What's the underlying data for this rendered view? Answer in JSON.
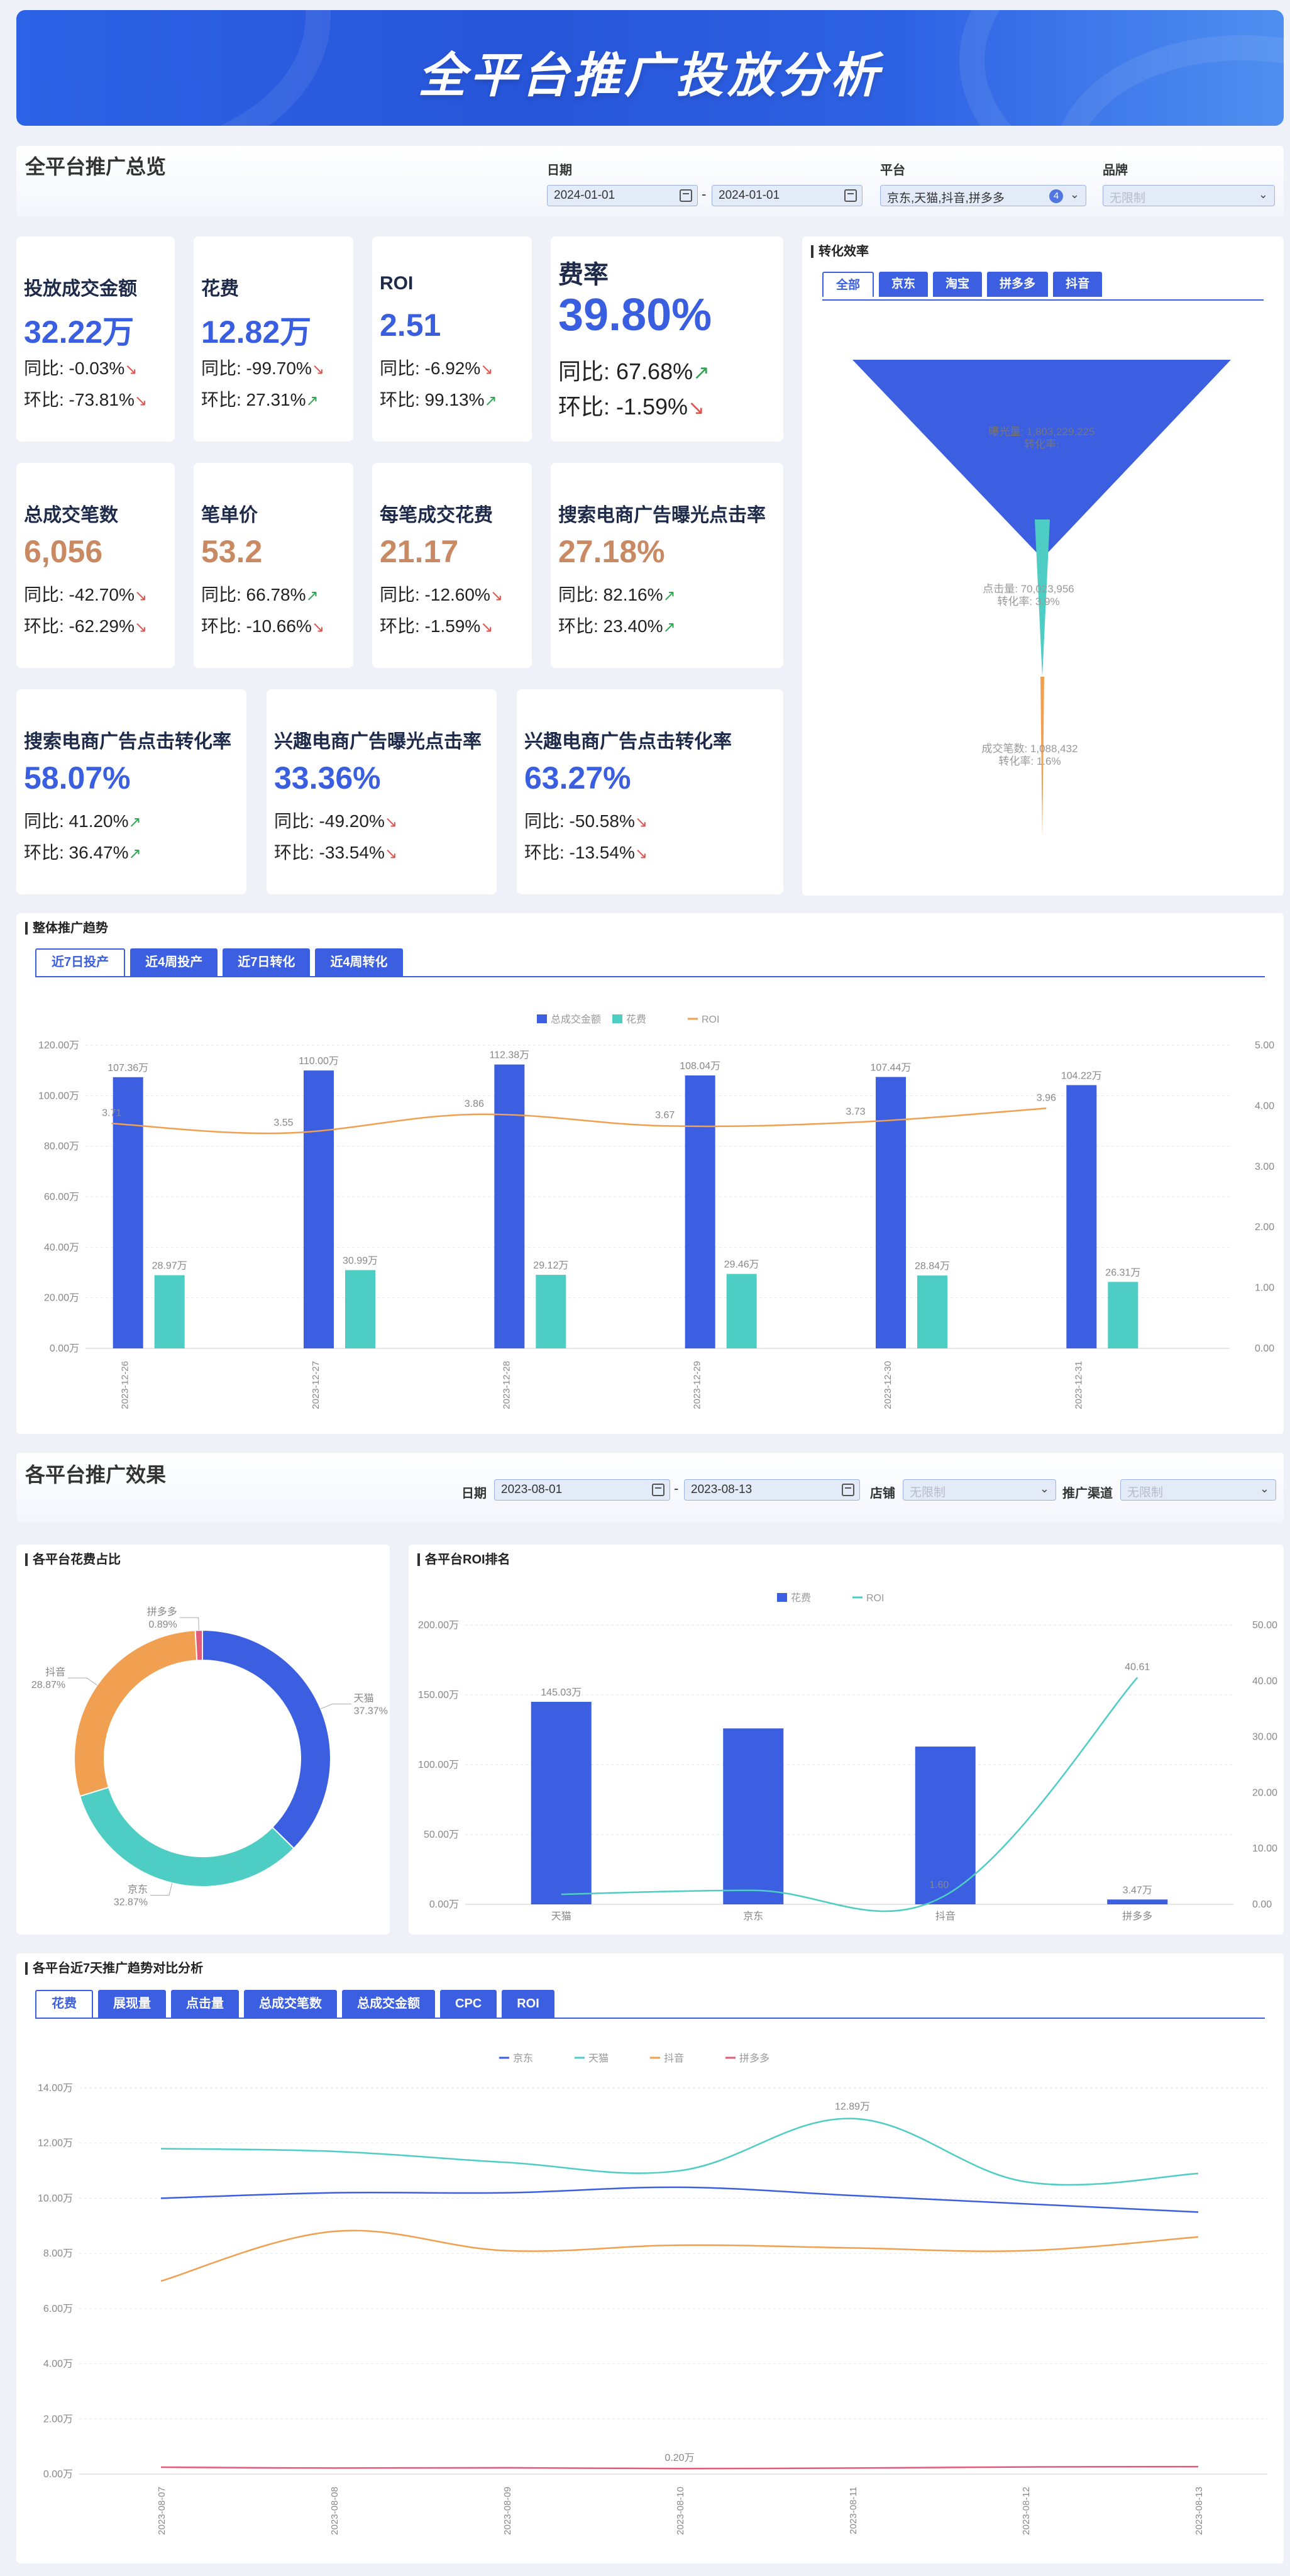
{
  "banner": {
    "title": "全平台推广投放分析"
  },
  "overview": {
    "title": "全平台推广总览",
    "date_label": "日期",
    "date_start": "2024-01-01",
    "date_end": "2024-01-01",
    "date_sep": "-",
    "platform_label": "平台",
    "platform_value": "京东,天猫,抖音,拼多多",
    "platform_count": "4",
    "brand_label": "品牌",
    "brand_placeholder": "无限制"
  },
  "kpis": [
    {
      "title": "投放成交金额",
      "value": "32.22万",
      "yoy": "同比: -0.03%",
      "mom": "环比: -73.81%",
      "yoy_dir": "down",
      "mom_dir": "down",
      "color": "blue"
    },
    {
      "title": "花费",
      "value": "12.82万",
      "yoy": "同比: -99.70%",
      "mom": "环比: 27.31%",
      "yoy_dir": "down",
      "mom_dir": "up",
      "color": "blue"
    },
    {
      "title": "ROI",
      "value": "2.51",
      "yoy": "同比: -6.92%",
      "mom": "环比: 99.13%",
      "yoy_dir": "down",
      "mom_dir": "up",
      "color": "blue"
    },
    {
      "title": "费率",
      "value": "39.80%",
      "yoy": "同比: 67.68%",
      "mom": "环比: -1.59%",
      "yoy_dir": "up",
      "mom_dir": "down",
      "color": "blue"
    },
    {
      "title": "总成交笔数",
      "value": "6,056",
      "yoy": "同比: -42.70%",
      "mom": "环比: -62.29%",
      "yoy_dir": "down",
      "mom_dir": "down",
      "color": "brown"
    },
    {
      "title": "笔单价",
      "value": "53.2",
      "yoy": "同比: 66.78%",
      "mom": "环比: -10.66%",
      "yoy_dir": "up",
      "mom_dir": "down",
      "color": "brown"
    },
    {
      "title": "每笔成交花费",
      "value": "21.17",
      "yoy": "同比: -12.60%",
      "mom": "环比: -1.59%",
      "yoy_dir": "down",
      "mom_dir": "down",
      "color": "brown"
    },
    {
      "title": "搜索电商广告曝光点击率",
      "value": "27.18%",
      "yoy": "同比: 82.16%",
      "mom": "环比: 23.40%",
      "yoy_dir": "up",
      "mom_dir": "up",
      "color": "brown"
    },
    {
      "title": "搜索电商广告点击转化率",
      "value": "58.07%",
      "yoy": "同比: 41.20%",
      "mom": "环比: 36.47%",
      "yoy_dir": "up",
      "mom_dir": "up",
      "color": "blue"
    },
    {
      "title": "兴趣电商广告曝光点击率",
      "value": "33.36%",
      "yoy": "同比: -49.20%",
      "mom": "环比: -33.54%",
      "yoy_dir": "down",
      "mom_dir": "down",
      "color": "blue"
    },
    {
      "title": "兴趣电商广告点击转化率",
      "value": "63.27%",
      "yoy": "同比: -50.58%",
      "mom": "环比: -13.54%",
      "yoy_dir": "down",
      "mom_dir": "down",
      "color": "blue"
    }
  ],
  "arrows": {
    "up": "↗",
    "down": "↘"
  },
  "colors": {
    "accent": "#3b5fe0",
    "blue_value": "#3a5ee0",
    "brown_value": "#c98a63",
    "up": "#2fa552",
    "down": "#e0524c",
    "teal": "#4ecdc4",
    "orange": "#f0a050",
    "pink": "#e25b7a"
  },
  "funnel": {
    "title": "转化效率",
    "tabs": [
      "全部",
      "京东",
      "淘宝",
      "拼多多",
      "抖音"
    ],
    "active_tab": 0,
    "stages": [
      {
        "label": "曝光量: 1,803,229,225",
        "sub": "转化率: "
      },
      {
        "label": "点击量: 70,023,956",
        "sub": "转化率: 3.9%"
      },
      {
        "label": "成交笔数: 1,088,432",
        "sub": "转化率: 1.6%"
      }
    ]
  },
  "trend": {
    "title": "整体推广趋势",
    "tabs": [
      "近7日投产",
      "近4周投产",
      "近7日转化",
      "近4周转化"
    ],
    "active_tab": 0
  },
  "platform_section": {
    "title": "各平台推广效果",
    "date_label": "日期",
    "date_start": "2023-08-01",
    "date_end": "2023-08-13",
    "date_sep": "-",
    "shop_label": "店铺",
    "shop_placeholder": "无限制",
    "channel_label": "推广渠道",
    "channel_placeholder": "无限制"
  },
  "donut_panel": {
    "title": "各平台花费占比"
  },
  "roi_panel": {
    "title": "各平台ROI排名"
  },
  "compare_panel": {
    "title": "各平台近7天推广趋势对比分析",
    "tabs": [
      "花费",
      "展现量",
      "点击量",
      "总成交笔数",
      "总成交金额",
      "CPC",
      "ROI"
    ],
    "active_tab": 0
  },
  "chart_data": [
    {
      "id": "trend",
      "type": "bar",
      "categories": [
        "2023-12-26",
        "2023-12-27",
        "2023-12-28",
        "2023-12-29",
        "2023-12-30",
        "2023-12-31"
      ],
      "series": [
        {
          "name": "总成交金额",
          "type": "bar",
          "values": [
            107.36,
            110.0,
            112.38,
            108.04,
            107.44,
            104.22
          ],
          "labels": [
            "107.36万",
            "110.00万",
            "112.38万",
            "108.04万",
            "107.44万",
            "104.22万"
          ]
        },
        {
          "name": "花费",
          "type": "bar",
          "values": [
            28.97,
            30.99,
            29.12,
            29.46,
            28.84,
            26.31
          ],
          "labels": [
            "28.97万",
            "30.99万",
            "29.12万",
            "29.46万",
            "28.84万",
            "26.31万"
          ]
        },
        {
          "name": "ROI",
          "type": "line",
          "axis": "right",
          "values": [
            3.71,
            3.55,
            3.86,
            3.67,
            3.73,
            3.96
          ],
          "labels": [
            "3.71",
            "3.55",
            "3.86",
            "3.67",
            "3.73",
            "3.96"
          ]
        }
      ],
      "y_ticks": [
        "0.00万",
        "20.00万",
        "40.00万",
        "60.00万",
        "80.00万",
        "100.00万",
        "120.00万"
      ],
      "ylim": [
        0,
        120
      ],
      "y2_ticks": [
        "0.00",
        "1.00",
        "2.00",
        "3.00",
        "4.00",
        "5.00"
      ],
      "y2lim": [
        0,
        5
      ],
      "legend": "top-center"
    },
    {
      "id": "funnel",
      "type": "funnel",
      "categories": [
        "曝光量",
        "点击量",
        "成交笔数"
      ],
      "values": [
        1803229225,
        70023956,
        1088432
      ]
    },
    {
      "id": "donut",
      "type": "pie",
      "categories": [
        "天猫",
        "京东",
        "抖音",
        "拼多多"
      ],
      "values": [
        37.37,
        32.87,
        28.87,
        0.89
      ],
      "labels": [
        "37.37%",
        "32.87%",
        "28.87%",
        "0.89%"
      ]
    },
    {
      "id": "roi",
      "type": "bar",
      "categories": [
        "天猫",
        "京东",
        "抖音",
        "拼多多"
      ],
      "series": [
        {
          "name": "花费",
          "type": "bar",
          "values": [
            145.03,
            126,
            113,
            3.47
          ],
          "labels": [
            "145.03万",
            "",
            "",
            "3.47万"
          ]
        },
        {
          "name": "ROI",
          "type": "line",
          "axis": "right",
          "values": [
            1.8,
            2.5,
            1.6,
            40.61
          ],
          "labels": [
            "",
            "",
            "1.60",
            "40.61"
          ]
        }
      ],
      "y_ticks": [
        "0.00万",
        "50.00万",
        "100.00万",
        "150.00万",
        "200.00万"
      ],
      "ylim": [
        0,
        200
      ],
      "y2_ticks": [
        "0.00",
        "10.00",
        "20.00",
        "30.00",
        "40.00",
        "50.00"
      ],
      "y2lim": [
        0,
        50
      ],
      "legend": "top-center"
    },
    {
      "id": "compare",
      "type": "line",
      "categories": [
        "2023-08-07",
        "2023-08-08",
        "2023-08-09",
        "2023-08-10",
        "2023-08-11",
        "2023-08-12",
        "2023-08-13"
      ],
      "series": [
        {
          "name": "京东",
          "values": [
            10.0,
            10.2,
            10.2,
            10.4,
            10.1,
            9.8,
            9.5
          ]
        },
        {
          "name": "天猫",
          "values": [
            11.8,
            11.7,
            11.3,
            11.0,
            12.89,
            10.6,
            10.9
          ]
        },
        {
          "name": "抖音",
          "values": [
            7.0,
            8.8,
            8.1,
            8.3,
            8.2,
            8.1,
            8.6
          ]
        },
        {
          "name": "拼多多",
          "values": [
            0.25,
            0.22,
            0.23,
            0.2,
            0.22,
            0.26,
            0.27
          ]
        }
      ],
      "annotations": [
        "12.89万",
        "0.20万"
      ],
      "y_ticks": [
        "0.00万",
        "2.00万",
        "4.00万",
        "6.00万",
        "8.00万",
        "10.00万",
        "12.00万",
        "14.00万"
      ],
      "ylim": [
        0,
        14
      ],
      "legend": "top-center"
    }
  ]
}
